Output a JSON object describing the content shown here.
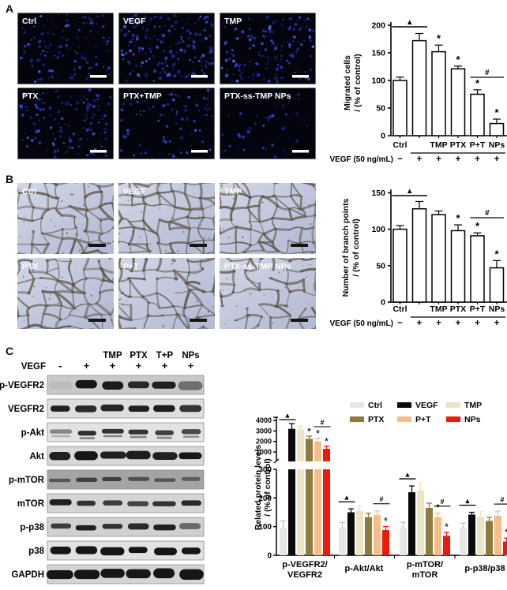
{
  "figure": {
    "panel_a_label": "A",
    "panel_b_label": "B",
    "panel_c_label": "C"
  },
  "panel_a": {
    "images": [
      {
        "label": "Ctrl"
      },
      {
        "label": "VEGF"
      },
      {
        "label": "TMP"
      },
      {
        "label": "PTX"
      },
      {
        "label": "PTX+TMP"
      },
      {
        "label": "PTX-ss-TMP NPs"
      }
    ]
  },
  "panel_b": {
    "images": [
      {
        "label": "Ctrl"
      },
      {
        "label": "VEGF"
      },
      {
        "label": "TMP"
      },
      {
        "label": "PTX"
      },
      {
        "label": "P+T"
      },
      {
        "label": "PTX-ss-TMP NPs"
      }
    ]
  },
  "panel_c": {
    "blot": {
      "drug_headers": [
        "TMP",
        "PTX",
        "T+P",
        "NPs"
      ],
      "vegf_label": "VEGF",
      "vegf_signs": [
        "-",
        "+",
        "+",
        "+",
        "+",
        "+"
      ],
      "rows": [
        {
          "label": "p-VEGFR2",
          "bands": [
            0.07,
            1.0,
            0.97,
            0.9,
            0.95,
            0.5
          ]
        },
        {
          "label": "VEGFR2",
          "bands": [
            0.95,
            0.9,
            0.92,
            0.95,
            0.97,
            0.85
          ]
        },
        {
          "label": "p-Akt",
          "bands": [
            0.45,
            0.88,
            0.85,
            0.85,
            0.8,
            0.75
          ]
        },
        {
          "label": "Akt",
          "bands": [
            0.95,
            1.0,
            0.95,
            0.97,
            0.95,
            1.0
          ]
        },
        {
          "label": "p-mTOR",
          "bands": [
            0.55,
            0.7,
            0.72,
            0.6,
            0.55,
            0.5
          ]
        },
        {
          "label": "mTOR",
          "bands": [
            0.95,
            0.85,
            0.8,
            0.75,
            0.85,
            0.9
          ]
        },
        {
          "label": "p-p38",
          "bands": [
            0.8,
            0.95,
            0.85,
            0.9,
            0.95,
            0.55
          ]
        },
        {
          "label": "p38",
          "bands": [
            1.0,
            1.0,
            1.0,
            1.0,
            1.0,
            1.0
          ]
        },
        {
          "label": "GAPDH",
          "bands": [
            1.0,
            1.0,
            1.0,
            1.0,
            1.0,
            1.0
          ]
        }
      ]
    }
  },
  "chart_data": [
    {
      "id": "migrated-cells",
      "type": "bar",
      "title": "",
      "ylabel_lines": [
        "Migrated cells",
        "/ (% of control)"
      ],
      "ylim": [
        0,
        200
      ],
      "yticks": [
        0,
        50,
        100,
        150,
        200
      ],
      "categories": [
        "Ctrl",
        "VEGF",
        "TMP",
        "PTX",
        "P+T",
        "NPs"
      ],
      "x_tick_labels": [
        "Ctrl",
        "",
        "TMP",
        "PTX",
        "P+T",
        "NPs"
      ],
      "values": [
        100,
        172,
        152,
        121,
        75,
        22
      ],
      "errors": [
        6,
        13,
        12,
        5,
        8,
        8
      ],
      "star_indices": [
        2,
        3,
        4,
        5
      ],
      "triangle_bridge": {
        "from": 0,
        "to": 1,
        "symbol": "▲"
      },
      "hash_bridge": {
        "from": 4,
        "to": 5,
        "symbol": "#"
      },
      "treatment_row": {
        "label": "VEGF (50 ng/mL)",
        "signs": [
          "−",
          "+",
          "+",
          "+",
          "+",
          "+"
        ]
      },
      "bar_fill": "#ffffff",
      "bar_stroke": "#000000",
      "grid": false
    },
    {
      "id": "branch-points",
      "type": "bar",
      "title": "",
      "ylabel_lines": [
        "Number of branch points",
        "/ (% of control)"
      ],
      "ylim": [
        0,
        150
      ],
      "yticks": [
        0,
        50,
        100,
        150
      ],
      "categories": [
        "Ctrl",
        "VEGF",
        "TMP",
        "PTX",
        "P+T",
        "NPs"
      ],
      "x_tick_labels": [
        "Ctrl",
        "",
        "TMP",
        "PTX",
        "P+T",
        "NPs"
      ],
      "values": [
        100,
        128,
        120,
        98,
        91,
        47
      ],
      "errors": [
        5,
        10,
        5,
        8,
        4,
        10
      ],
      "star_indices": [
        3,
        4,
        5
      ],
      "triangle_bridge": {
        "from": 0,
        "to": 1,
        "symbol": "▲"
      },
      "hash_bridge": {
        "from": 4,
        "to": 5,
        "symbol": "#"
      },
      "treatment_row": {
        "label": "VEGF (50 ng/mL)",
        "signs": [
          "−",
          "+",
          "+",
          "+",
          "+",
          "+"
        ]
      },
      "bar_fill": "#ffffff",
      "bar_stroke": "#000000",
      "grid": false
    },
    {
      "id": "protein-levels",
      "type": "grouped-bar-broken-axis",
      "title": "",
      "ylabel_lines": [
        "Related protein levels",
        "/ (% of control)"
      ],
      "lower_ylim": [
        0,
        300
      ],
      "lower_yticks": [
        0,
        100,
        200,
        300
      ],
      "upper_ylim": [
        1000,
        4000
      ],
      "upper_yticks": [
        1000,
        2000,
        3000,
        4000
      ],
      "categories": [
        "p-VEGFR2/VEGFR2",
        "p-Akt/Akt",
        "p-mTOR/mTOR",
        "p-p38/p38"
      ],
      "category_label_lines": [
        [
          "p-VEGFR2/",
          "VEGFR2"
        ],
        [
          "p-Akt/Akt"
        ],
        [
          "p-mTOR/",
          "mTOR"
        ],
        [
          "p-p38/p38"
        ]
      ],
      "series": [
        {
          "name": "Ctrl",
          "color": "#e6e6e4",
          "values": [
            95,
            97,
            97,
            96
          ],
          "errors": [
            25,
            18,
            18,
            16
          ]
        },
        {
          "name": "VEGF",
          "color": "#0a0a0a",
          "values": [
            3200,
            150,
            220,
            142
          ],
          "errors": [
            500,
            12,
            22,
            8
          ]
        },
        {
          "name": "TMP",
          "color": "#ede3c6",
          "values": [
            3150,
            155,
            227,
            135
          ],
          "errors": [
            300,
            17,
            25,
            17
          ]
        },
        {
          "name": "PTX",
          "color": "#8c7b3d",
          "values": [
            2250,
            133,
            165,
            120
          ],
          "errors": [
            250,
            14,
            17,
            13
          ]
        },
        {
          "name": "P+T",
          "color": "#f4bd8a",
          "values": [
            2000,
            140,
            133,
            138
          ],
          "errors": [
            300,
            15,
            14,
            16
          ]
        },
        {
          "name": "NPs",
          "color": "#ec1a0d",
          "values": [
            1300,
            88,
            68,
            48
          ],
          "errors": [
            250,
            12,
            12,
            12
          ]
        }
      ],
      "legend_rows": [
        [
          "Ctrl",
          "VEGF",
          "TMP"
        ],
        [
          "PTX",
          "P+T",
          "NPs"
        ]
      ],
      "star_marks": [
        {
          "group": 0,
          "series": [
            3,
            4,
            5
          ]
        },
        {
          "group": 1,
          "series": [
            5
          ]
        },
        {
          "group": 2,
          "series": [
            4,
            5
          ]
        },
        {
          "group": 3,
          "series": [
            5
          ]
        }
      ],
      "triangle_bridges": [
        {
          "group": 0,
          "from": 0,
          "to": 1,
          "symbol": "▲"
        },
        {
          "group": 1,
          "from": 0,
          "to": 1,
          "symbol": "▲"
        },
        {
          "group": 2,
          "from": 0,
          "to": 1,
          "symbol": "▲"
        },
        {
          "group": 3,
          "from": 0,
          "to": 1,
          "symbol": "▲"
        }
      ],
      "hash_bridges": [
        {
          "group": 0,
          "from": 4,
          "to": 5,
          "symbol": "#"
        },
        {
          "group": 1,
          "from": 4,
          "to": 5,
          "symbol": "#"
        },
        {
          "group": 2,
          "from": 4,
          "to": 5,
          "symbol": "#"
        },
        {
          "group": 3,
          "from": 4,
          "to": 5,
          "symbol": "#"
        }
      ]
    }
  ]
}
